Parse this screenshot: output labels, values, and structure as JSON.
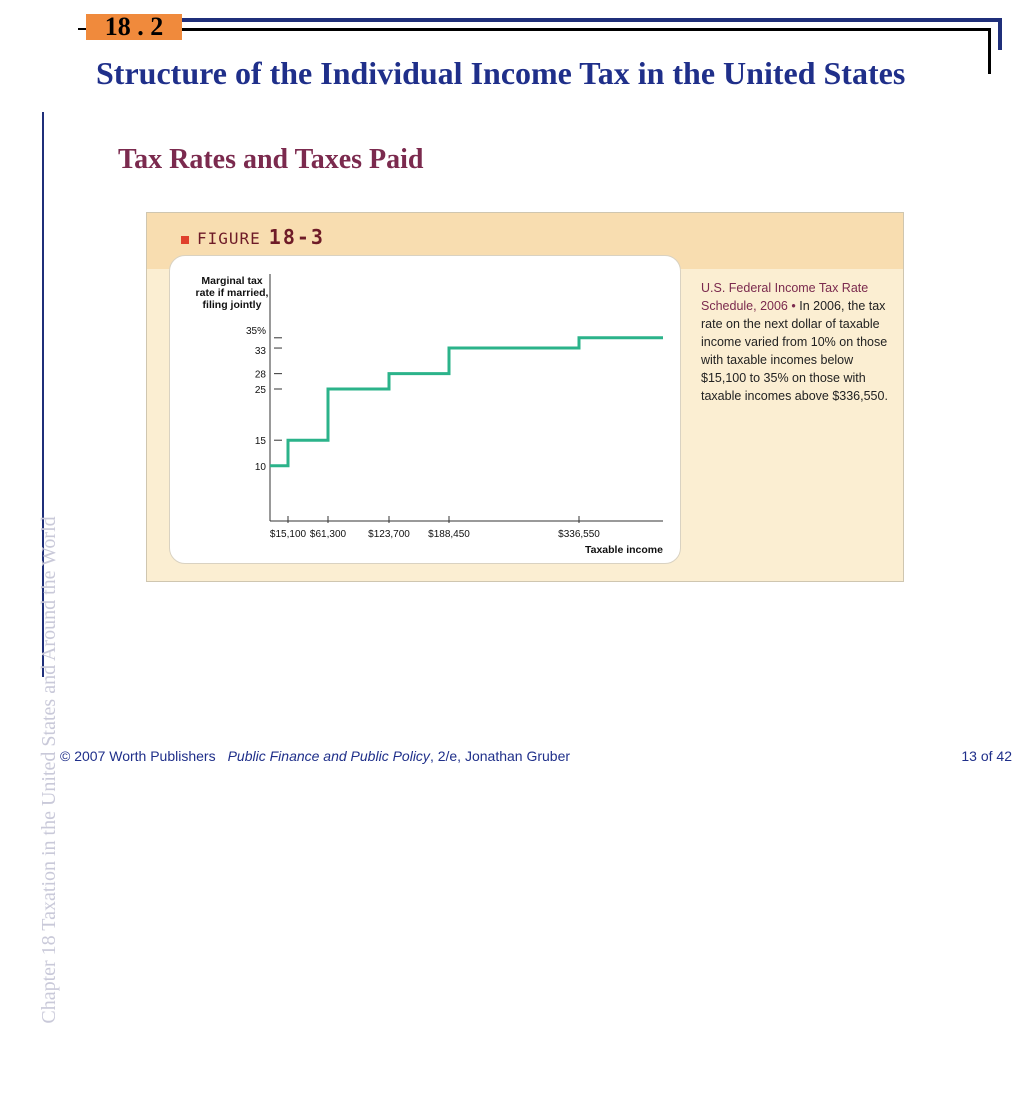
{
  "slide": {
    "section": "18 . 2",
    "title": "Structure of the Individual Income Tax in the United States",
    "subtitle": "Tax Rates and Taxes Paid",
    "side_label": "Chapter 18   Taxation in the United States and Around the World"
  },
  "figure": {
    "label_word": "FIGURE",
    "label_number": "18-3",
    "caption_title": "U.S. Federal Income Tax Rate Schedule, 2006",
    "caption_bullet": "•",
    "caption_text": "In 2006, the tax rate on the next dollar of taxable income varied from 10% on those with taxable incomes below $15,100 to 35% on those with taxable incomes above $336,550."
  },
  "chart_data": {
    "type": "line",
    "step": true,
    "ylabel": "Marginal tax rate if married, filing jointly",
    "xlabel": "Taxable income",
    "yticks": [
      10,
      15,
      25,
      28,
      33,
      35
    ],
    "ytick_labels": [
      "10",
      "15",
      "25",
      "28",
      "33",
      "35%"
    ],
    "xticks": [
      15100,
      61300,
      123700,
      188450,
      336550
    ],
    "xtick_labels": [
      "$15,100",
      "$61,300",
      "$123,700",
      "$188,450",
      "$336,550"
    ],
    "brackets": [
      {
        "from": 0,
        "to": 15100,
        "rate": 10
      },
      {
        "from": 15100,
        "to": 61300,
        "rate": 15
      },
      {
        "from": 61300,
        "to": 123700,
        "rate": 25
      },
      {
        "from": 123700,
        "to": 188450,
        "rate": 28
      },
      {
        "from": 188450,
        "to": 336550,
        "rate": 33
      },
      {
        "from": 336550,
        "to": null,
        "rate": 35
      }
    ],
    "line_color": "#2bb38a"
  },
  "footer": {
    "copyright": "© 2007 Worth Publishers",
    "book_title": "Public Finance and Public Policy",
    "book_rest": ", 2/e, Jonathan Gruber",
    "page": "13 of 42"
  }
}
